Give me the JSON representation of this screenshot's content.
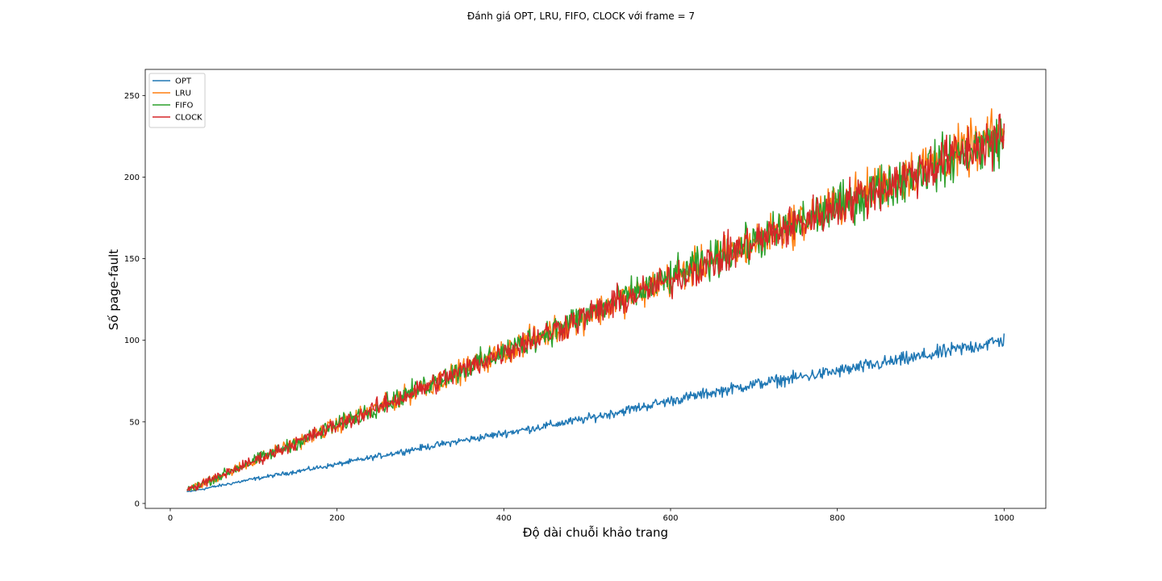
{
  "chart_data": {
    "type": "line",
    "title": "Đánh giá OPT, LRU, FIFO, CLOCK với frame = 7",
    "xlabel": "Độ dài chuỗi khảo trang",
    "ylabel": "Số page-fault",
    "xlim": [
      -30,
      1050
    ],
    "ylim": [
      -3,
      266
    ],
    "xticks": [
      0,
      200,
      400,
      600,
      800,
      1000
    ],
    "yticks": [
      0,
      50,
      100,
      150,
      200,
      250
    ],
    "grid": false,
    "legend_position": "top-left",
    "x_range": [
      20,
      1000
    ],
    "series": [
      {
        "name": "OPT",
        "color": "#1f77b4",
        "trend": [
          [
            20,
            7
          ],
          [
            100,
            15
          ],
          [
            200,
            24
          ],
          [
            300,
            34
          ],
          [
            400,
            43
          ],
          [
            500,
            52
          ],
          [
            600,
            63
          ],
          [
            700,
            73
          ],
          [
            800,
            81
          ],
          [
            900,
            90
          ],
          [
            1000,
            100
          ]
        ],
        "noise": 3.0,
        "range_observed": [
          7,
          109
        ]
      },
      {
        "name": "LRU",
        "color": "#ff7f0e",
        "trend": [
          [
            20,
            8
          ],
          [
            100,
            26
          ],
          [
            200,
            48
          ],
          [
            300,
            70
          ],
          [
            400,
            93
          ],
          [
            500,
            115
          ],
          [
            600,
            138
          ],
          [
            700,
            160
          ],
          [
            800,
            183
          ],
          [
            900,
            205
          ],
          [
            1000,
            226
          ]
        ],
        "noise": 10.0,
        "range_observed": [
          8,
          254
        ]
      },
      {
        "name": "FIFO",
        "color": "#2ca02c",
        "trend": [
          [
            20,
            8
          ],
          [
            100,
            26
          ],
          [
            200,
            48
          ],
          [
            300,
            71
          ],
          [
            400,
            93
          ],
          [
            500,
            116
          ],
          [
            600,
            138
          ],
          [
            700,
            160
          ],
          [
            800,
            182
          ],
          [
            900,
            204
          ],
          [
            1000,
            224
          ]
        ],
        "noise": 10.0,
        "range_observed": [
          8,
          240
        ]
      },
      {
        "name": "CLOCK",
        "color": "#d62728",
        "trend": [
          [
            20,
            8
          ],
          [
            100,
            26
          ],
          [
            200,
            48
          ],
          [
            300,
            70
          ],
          [
            400,
            93
          ],
          [
            500,
            115
          ],
          [
            600,
            137
          ],
          [
            700,
            160
          ],
          [
            800,
            182
          ],
          [
            900,
            204
          ],
          [
            1000,
            225
          ]
        ],
        "noise": 10.0,
        "range_observed": [
          8,
          250
        ]
      }
    ]
  }
}
